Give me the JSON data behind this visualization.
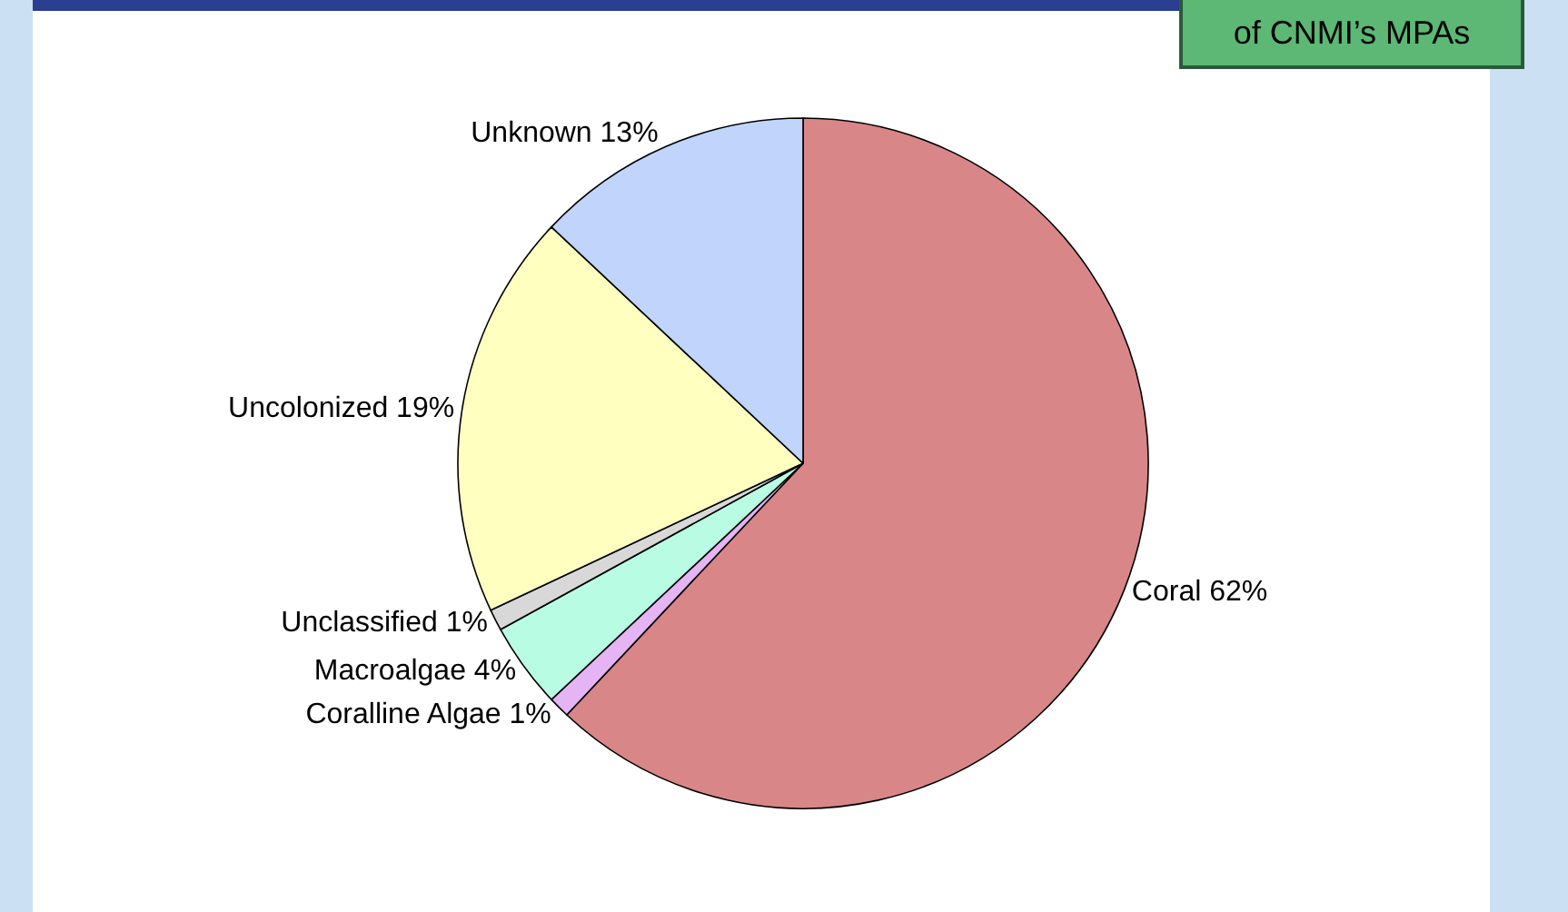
{
  "chart_data": {
    "type": "pie",
    "annotations": [
      "of CNMI’s MPAs"
    ],
    "categories": [
      "Coral",
      "Coralline Algae",
      "Macroalgae",
      "Unclassified",
      "Uncolonized",
      "Unknown"
    ],
    "values": [
      62,
      1,
      4,
      1,
      19,
      13
    ],
    "value_labels": [
      "62%",
      "1%",
      "4%",
      "1%",
      "19%",
      "13%"
    ],
    "colors": [
      "#d88687",
      "#e4b4f4",
      "#b8fce4",
      "#d8d8d8",
      "#ffffc0",
      "#c0d4fc"
    ],
    "legend": false
  }
}
